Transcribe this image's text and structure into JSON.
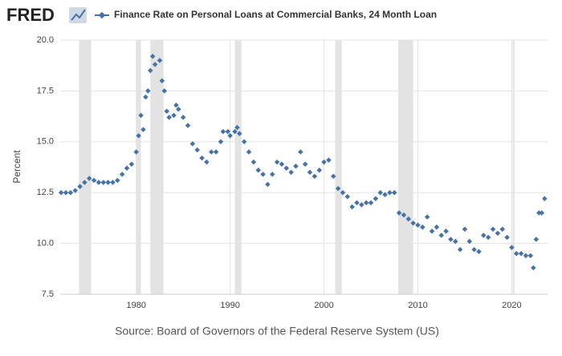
{
  "logo": "FRED",
  "chart_data": {
    "type": "scatter",
    "y_label": "Percent",
    "source": "Source: Board of Governors of the Federal Reserve System (US)",
    "xlim": [
      1971.9,
      2023.9
    ],
    "xticks": [
      1980,
      1990,
      2000,
      2010,
      2020
    ],
    "ylim": [
      7.5,
      20
    ],
    "yticks": [
      {
        "value": 7.5,
        "label": "7.5"
      },
      {
        "value": 10,
        "label": "10.0"
      },
      {
        "value": 12.5,
        "label": "12.5"
      },
      {
        "value": 15,
        "label": "15.0"
      },
      {
        "value": 17.5,
        "label": "17.5"
      },
      {
        "value": 20,
        "label": "20.0"
      }
    ],
    "grid": true,
    "recessions": [
      [
        1973.9,
        1975.2
      ],
      [
        1980.0,
        1980.5
      ],
      [
        1981.5,
        1982.9
      ],
      [
        1990.5,
        1991.2
      ],
      [
        2001.2,
        2001.9
      ],
      [
        2007.9,
        2009.5
      ],
      [
        2020.1,
        2020.3
      ]
    ],
    "x": [
      1972,
      1972.5,
      1973,
      1973.5,
      1974,
      1974.5,
      1975,
      1975.5,
      1976,
      1976.5,
      1977,
      1977.5,
      1978,
      1978.5,
      1979,
      1979.5,
      1980,
      1980.25,
      1980.5,
      1980.75,
      1981,
      1981.25,
      1981.5,
      1981.75,
      1982,
      1982.5,
      1982.75,
      1983,
      1983.25,
      1983.5,
      1984,
      1984.25,
      1984.5,
      1985,
      1985.5,
      1986,
      1986.5,
      1987,
      1987.5,
      1988,
      1988.5,
      1989,
      1989.25,
      1989.75,
      1990,
      1990.5,
      1990.75,
      1991,
      1991.5,
      1992,
      1992.5,
      1993,
      1993.5,
      1994,
      1994.5,
      1995,
      1995.5,
      1996,
      1996.5,
      1997,
      1997.5,
      1998,
      1998.5,
      1999,
      1999.5,
      2000,
      2000.5,
      2001,
      2001.5,
      2002,
      2002.5,
      2003,
      2003.5,
      2004,
      2004.5,
      2005,
      2005.5,
      2006,
      2006.5,
      2007,
      2007.5,
      2008,
      2008.5,
      2009,
      2009.5,
      2010,
      2010.5,
      2011,
      2011.5,
      2012,
      2012.5,
      2013,
      2013.5,
      2014,
      2014.5,
      2015,
      2015.5,
      2016,
      2016.5,
      2017,
      2017.5,
      2018,
      2018.5,
      2019,
      2019.5,
      2020,
      2020.5,
      2021,
      2021.5,
      2022,
      2022.3,
      2022.6,
      2022.9,
      2023.2,
      2023.5
    ],
    "series": [
      {
        "name": "Finance Rate on Personal Loans at Commercial Banks, 24 Month Loan",
        "color": "#4572a7",
        "values": [
          12.5,
          12.5,
          12.5,
          12.6,
          12.8,
          13.0,
          13.2,
          13.1,
          13.0,
          13.0,
          13.0,
          13.0,
          13.1,
          13.4,
          13.7,
          13.9,
          14.5,
          15.3,
          16.3,
          15.6,
          17.2,
          17.5,
          18.5,
          19.2,
          18.8,
          19.0,
          18.0,
          17.5,
          16.5,
          16.2,
          16.3,
          16.8,
          16.6,
          16.2,
          15.8,
          14.9,
          14.6,
          14.2,
          14.0,
          14.5,
          14.5,
          15.0,
          15.5,
          15.5,
          15.3,
          15.5,
          15.7,
          15.4,
          15.0,
          14.5,
          14.0,
          13.6,
          13.4,
          12.9,
          13.4,
          14.0,
          13.9,
          13.7,
          13.5,
          13.8,
          14.5,
          13.9,
          13.5,
          13.3,
          13.6,
          14.0,
          14.1,
          13.3,
          12.7,
          12.5,
          12.3,
          11.8,
          12.0,
          11.9,
          12.0,
          12.0,
          12.2,
          12.5,
          12.4,
          12.5,
          12.5,
          11.5,
          11.4,
          11.2,
          11.0,
          10.9,
          10.8,
          11.3,
          10.6,
          10.8,
          10.4,
          10.6,
          10.2,
          10.1,
          9.7,
          10.7,
          10.1,
          9.7,
          9.6,
          10.4,
          10.3,
          10.7,
          10.5,
          10.7,
          10.3,
          9.8,
          9.5,
          9.5,
          9.4,
          9.4,
          8.8,
          10.2,
          11.5,
          11.5,
          12.2
        ]
      }
    ]
  }
}
